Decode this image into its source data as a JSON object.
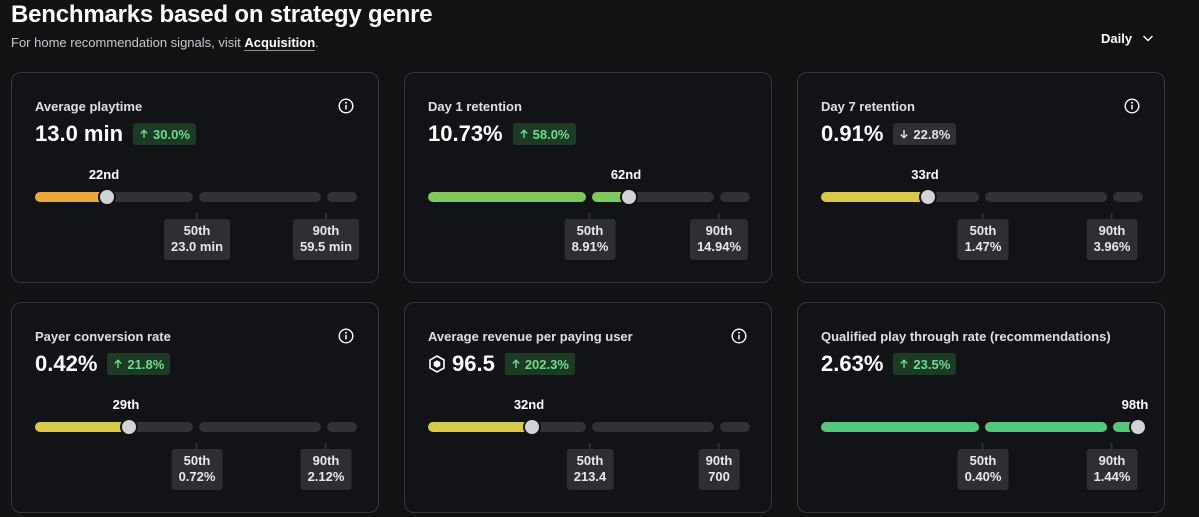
{
  "header": {
    "title": "Benchmarks based on strategy genre",
    "subtitle_prefix": "For home recommendation signals, visit ",
    "subtitle_link": "Acquisition",
    "subtitle_suffix": ".",
    "period": "Daily"
  },
  "cards": [
    {
      "title": "Average playtime",
      "value": "13.0 min",
      "delta": "30.0%",
      "delta_dir": "up",
      "rank": "22nd",
      "percentile": 0.22,
      "fill_color": "#e8a83a",
      "p50_label": "50th",
      "p50_value": "23.0 min",
      "p90_label": "90th",
      "p90_value": "59.5 min",
      "has_info": true,
      "has_currency_icon": false
    },
    {
      "title": "Day 1 retention",
      "value": "10.73%",
      "delta": "58.0%",
      "delta_dir": "up",
      "rank": "62nd",
      "percentile": 0.62,
      "fill_color": "#7dc95e",
      "p50_label": "50th",
      "p50_value": "8.91%",
      "p90_label": "90th",
      "p90_value": "14.94%",
      "has_info": false,
      "has_currency_icon": false
    },
    {
      "title": "Day 7 retention",
      "value": "0.91%",
      "delta": "22.8%",
      "delta_dir": "down",
      "rank": "33rd",
      "percentile": 0.33,
      "fill_color": "#d8c94a",
      "p50_label": "50th",
      "p50_value": "1.47%",
      "p90_label": "90th",
      "p90_value": "3.96%",
      "has_info": true,
      "has_currency_icon": false
    },
    {
      "title": "Payer conversion rate",
      "value": "0.42%",
      "delta": "21.8%",
      "delta_dir": "up",
      "rank": "29th",
      "percentile": 0.29,
      "fill_color": "#d8c94a",
      "p50_label": "50th",
      "p50_value": "0.72%",
      "p90_label": "90th",
      "p90_value": "2.12%",
      "has_info": true,
      "has_currency_icon": false
    },
    {
      "title": "Average revenue per paying user",
      "value": "96.5",
      "delta": "202.3%",
      "delta_dir": "up",
      "rank": "32nd",
      "percentile": 0.32,
      "fill_color": "#d8c94a",
      "p50_label": "50th",
      "p50_value": "213.4",
      "p90_label": "90th",
      "p90_value": "700",
      "has_info": true,
      "has_currency_icon": true
    },
    {
      "title": "Qualified play through rate (recommendations)",
      "value": "2.63%",
      "delta": "23.5%",
      "delta_dir": "up",
      "rank": "98th",
      "percentile": 0.98,
      "fill_color": "#56c77a",
      "p50_label": "50th",
      "p50_value": "0.40%",
      "p90_label": "90th",
      "p90_value": "1.44%",
      "has_info": false,
      "has_currency_icon": false
    }
  ],
  "colors": {
    "background": "#111214",
    "card_border": "#34363b",
    "track": "#303236",
    "up": "#6fdc8c"
  },
  "icons": {
    "info": "info-circle-icon",
    "chevron": "chevron-down-icon",
    "up": "arrow-up-icon",
    "down": "arrow-down-icon",
    "currency": "robux-icon"
  }
}
